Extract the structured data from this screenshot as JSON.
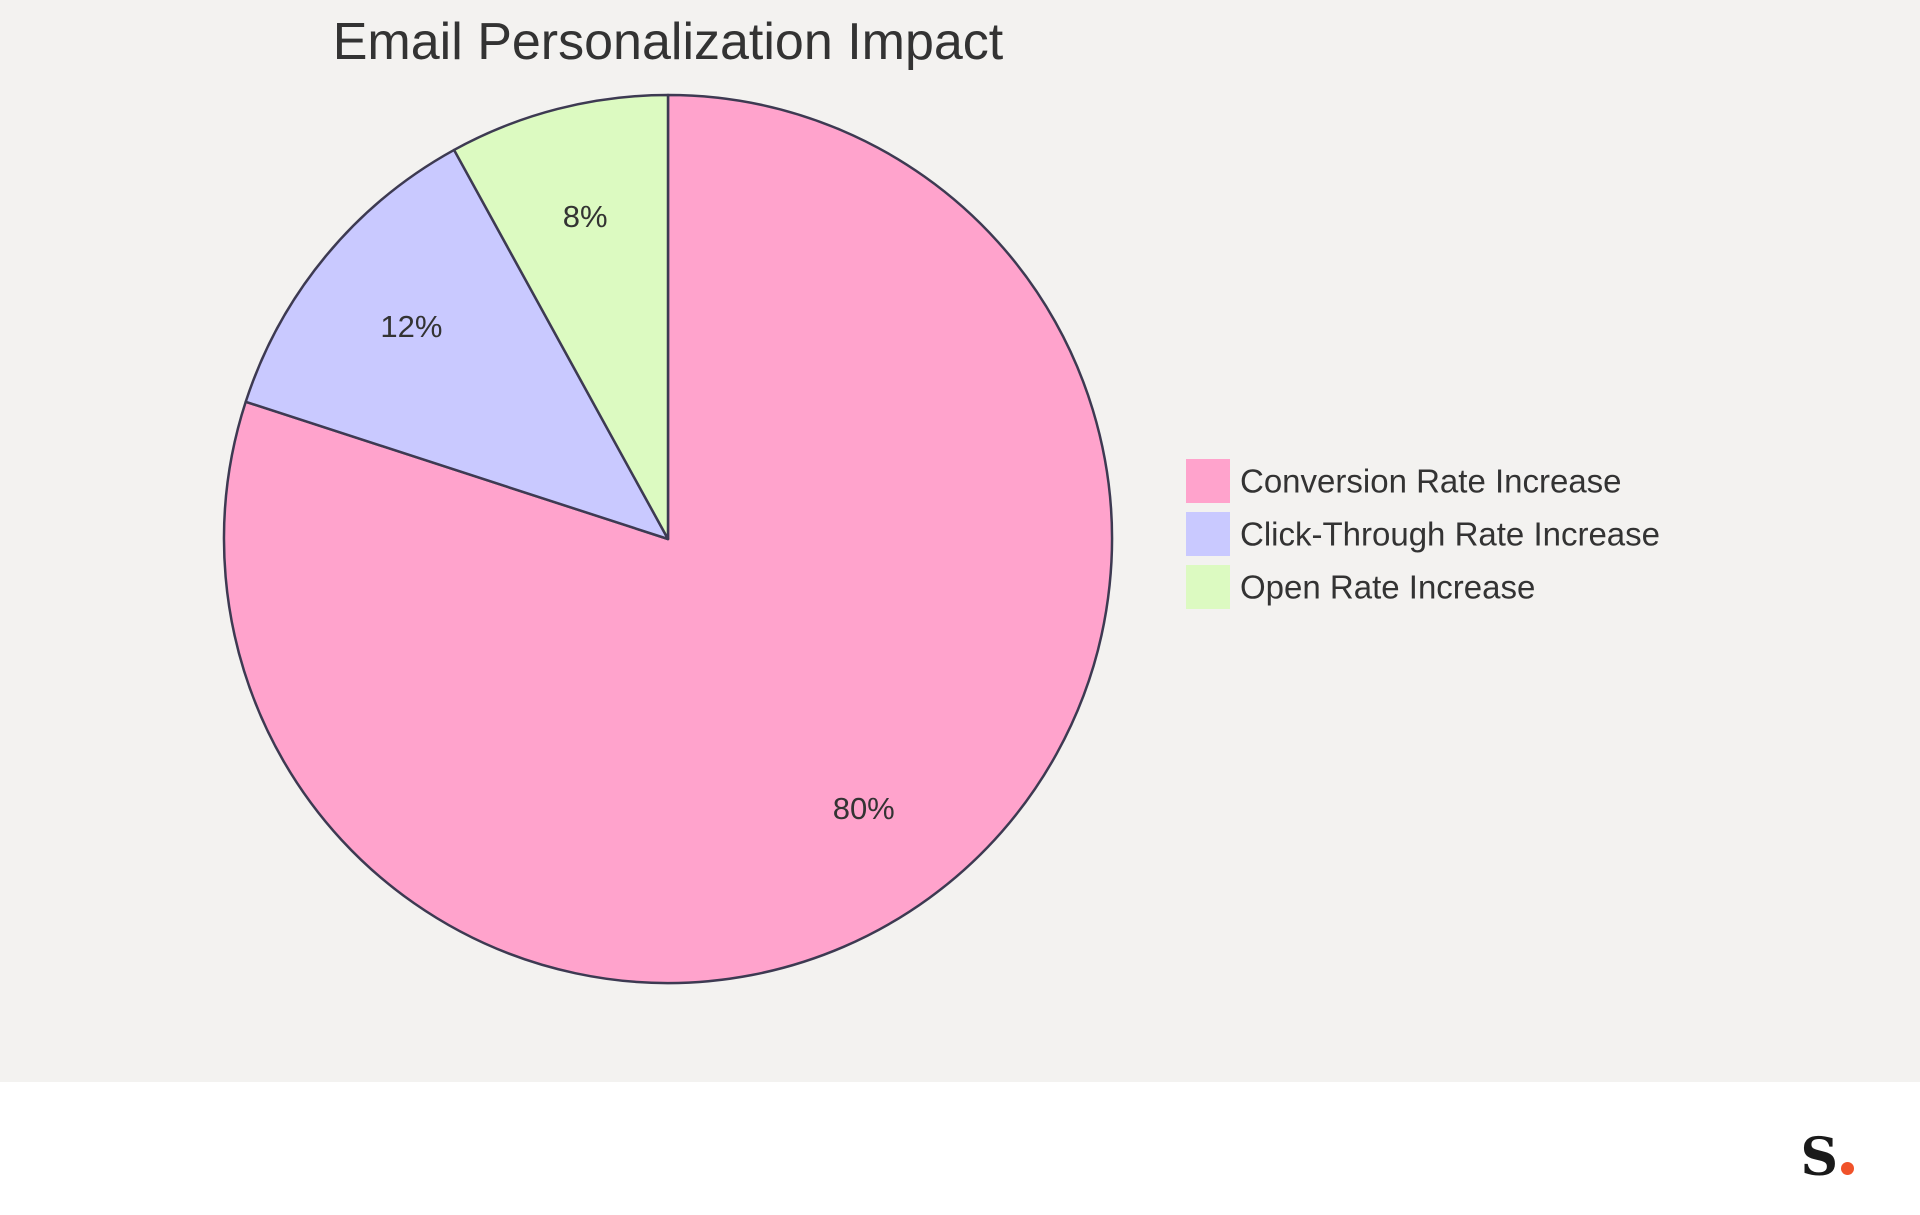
{
  "chart_data": {
    "type": "pie",
    "title": "Email Personalization Impact",
    "slices": [
      {
        "name": "Conversion Rate Increase",
        "value": 80,
        "label": "80%",
        "color": "#ffa3cc"
      },
      {
        "name": "Click-Through Rate Increase",
        "value": 12,
        "label": "12%",
        "color": "#c9c9ff"
      },
      {
        "name": "Open Rate Increase",
        "value": 8,
        "label": "8%",
        "color": "#dcfac1"
      }
    ],
    "start": "top",
    "direction": "clockwise",
    "legend_position": "right",
    "stroke_color": "#3d3a52"
  },
  "branding": {
    "logo_letter": "S",
    "dot_color": "#f0522a"
  }
}
